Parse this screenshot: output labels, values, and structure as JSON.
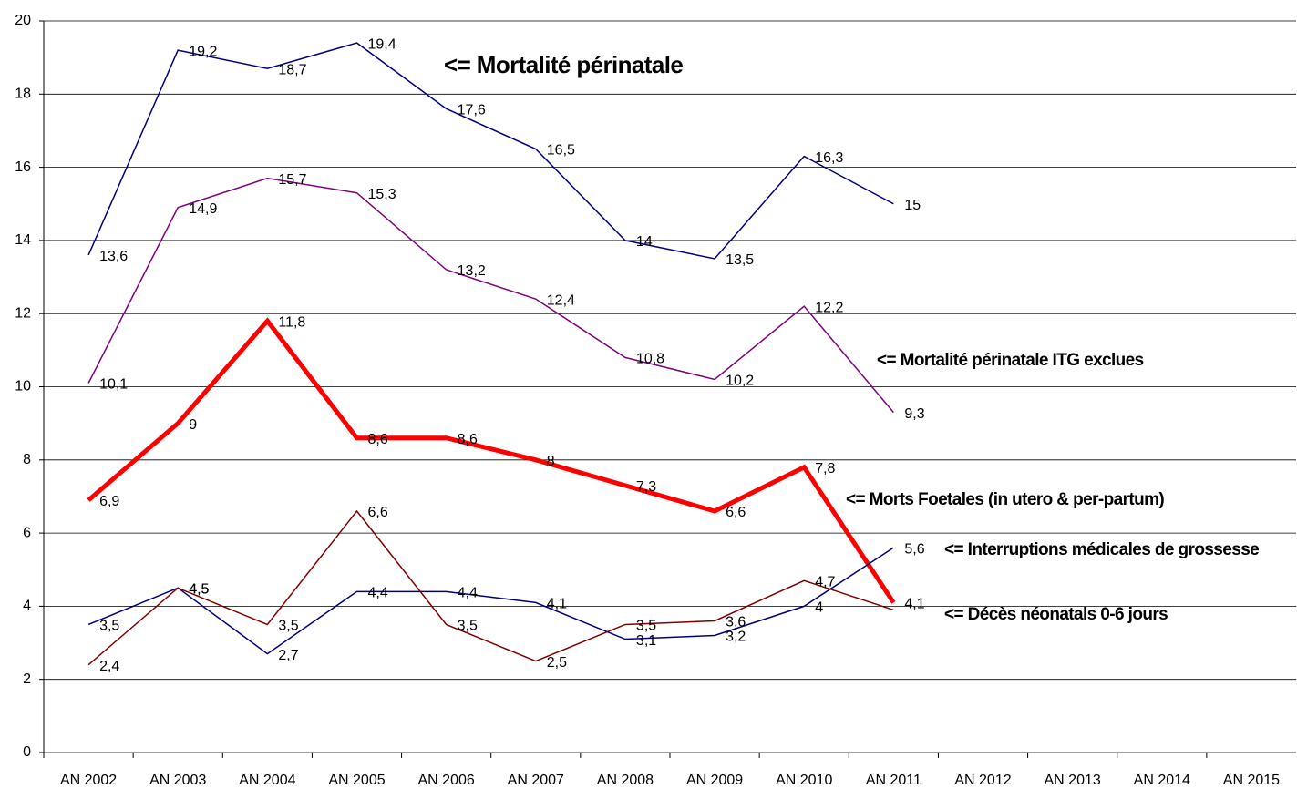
{
  "chart_data": {
    "type": "line",
    "categories": [
      "AN 2002",
      "AN 2003",
      "AN 2004",
      "AN 2005",
      "AN 2006",
      "AN 2007",
      "AN 2008",
      "AN 2009",
      "AN 2010",
      "AN 2011",
      "AN 2012",
      "AN 2013",
      "AN 2014",
      "AN 2015"
    ],
    "ylim": [
      0,
      20
    ],
    "yticks": [
      0,
      2,
      4,
      6,
      8,
      10,
      12,
      14,
      16,
      18,
      20
    ],
    "grid": true,
    "annotations": [
      "<= Mortalité périnatale",
      "<= Mortalité périnatale ITG exclues",
      "<= Morts Foetales (in utero & per-partum)",
      "<= Interruptions médicales de grossesse",
      "<= Décès néonatals 0-6 jours"
    ],
    "series": [
      {
        "name": "Mortalité périnatale",
        "color": "#000080",
        "width": 1.5,
        "values": [
          13.6,
          19.2,
          18.7,
          19.4,
          17.6,
          16.5,
          14,
          13.5,
          16.3,
          15,
          null,
          null,
          null,
          null
        ],
        "value_labels": [
          "13,6",
          "19,2",
          "18,7",
          "19,4",
          "17,6",
          "16,5",
          "14",
          "13,5",
          "16,3",
          "15",
          null,
          null,
          null,
          null
        ]
      },
      {
        "name": "Mortalité périnatale ITG exclues",
        "color": "#800080",
        "width": 1.5,
        "values": [
          10.1,
          14.9,
          15.7,
          15.3,
          13.2,
          12.4,
          10.8,
          10.2,
          12.2,
          9.3,
          null,
          null,
          null,
          null
        ],
        "value_labels": [
          "10,1",
          "14,9",
          "15,7",
          "15,3",
          "13,2",
          "12,4",
          "10,8",
          "10,2",
          "12,2",
          "9,3",
          null,
          null,
          null,
          null
        ]
      },
      {
        "name": "Morts Foetales (in utero & per-partum)",
        "color": "#ff0000",
        "width": 5,
        "values": [
          6.9,
          9,
          11.8,
          8.6,
          8.6,
          8,
          7.3,
          6.6,
          7.8,
          4.1,
          null,
          null,
          null,
          null
        ],
        "value_labels": [
          "6,9",
          "9",
          "11,8",
          "8,6",
          "8,6",
          "8",
          "7,3",
          "6,6",
          "7,8",
          "4,1",
          null,
          null,
          null,
          null
        ]
      },
      {
        "name": "Interruptions médicales de grossesse",
        "color": "#000080",
        "width": 1.5,
        "values": [
          3.5,
          4.5,
          2.7,
          4.4,
          4.4,
          4.1,
          3.1,
          3.2,
          4,
          5.6,
          null,
          null,
          null,
          null
        ],
        "value_labels": [
          "3,5",
          "4,5",
          "2,7",
          "4,4",
          "4,4",
          "4,1",
          "3,1",
          "3,2",
          "4",
          "5,6",
          null,
          null,
          null,
          null
        ]
      },
      {
        "name": "Décès néonatals 0-6 jours",
        "color": "#800000",
        "width": 1.5,
        "values": [
          2.4,
          4.5,
          3.5,
          6.6,
          3.5,
          2.5,
          3.5,
          3.6,
          4.7,
          3.9,
          null,
          null,
          null,
          null
        ],
        "value_labels": [
          "2,4",
          "4,5",
          "3,5",
          "6,6",
          "3,5",
          "2,5",
          "3,5",
          "3,6",
          "4,7",
          null,
          null,
          null,
          null,
          null
        ]
      }
    ]
  }
}
